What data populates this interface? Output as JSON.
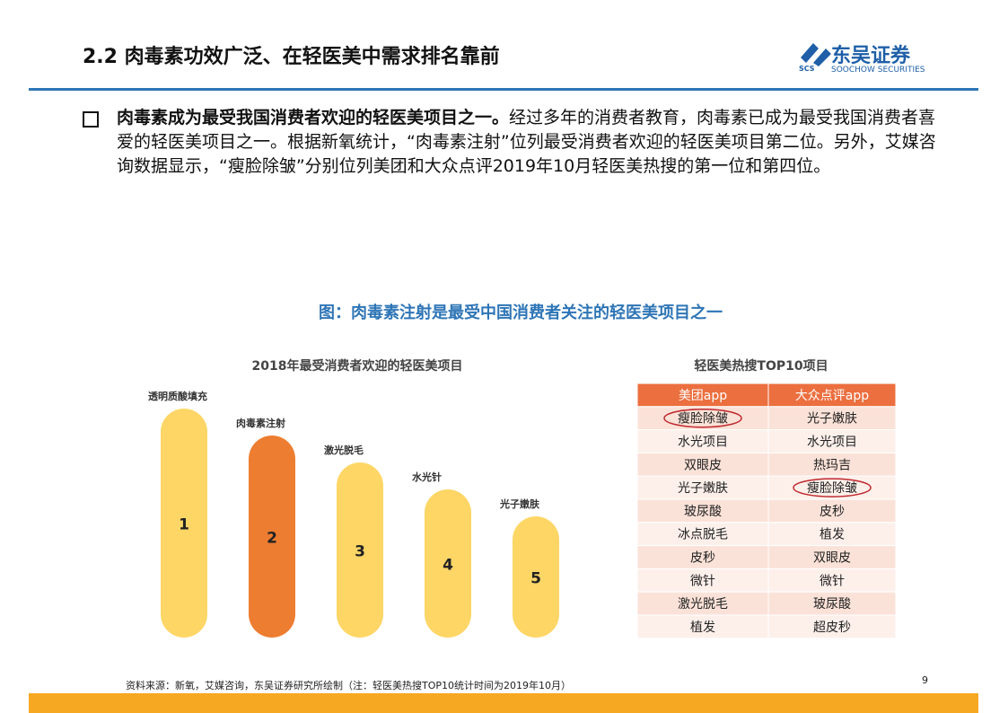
{
  "header": {
    "title": "2.2 肉毒素功效广泛、在轻医美中需求排名靠前",
    "logo_cn": "东吴证券",
    "logo_en": "SOOCHOW SECURITIES",
    "logo_mark": "SCS"
  },
  "bullet": {
    "bold": "肉毒素成为最受我国消费者欢迎的轻医美项目之一。",
    "text": "经过多年的消费者教育，肉毒素已成为最受我国消费者喜爱的轻医美项目之一。根据新氧统计，“肉毒素注射”位列最受消费者欢迎的轻医美项目第二位。另外，艾媒咨询数据显示，“瘦脸除皱”分别位列美团和大众点评2019年10月轻医美热搜的第一位和第四位。"
  },
  "figure_caption": "图：肉毒素注射是最受中国消费者关注的轻医美项目之一",
  "ranking": {
    "title": "2018年最受消费者欢迎的轻医美项目",
    "highlight": 1,
    "color": "#fdd666",
    "highlight_color": "#ed7d31",
    "items": [
      {
        "label": "透明质酸填充",
        "rank": 1
      },
      {
        "label": "肉毒素注射",
        "rank": 2
      },
      {
        "label": "激光脱毛",
        "rank": 3
      },
      {
        "label": "水光针",
        "rank": 4
      },
      {
        "label": "光子嫩肤",
        "rank": 5
      }
    ]
  },
  "table": {
    "title": "轻医美热搜TOP10项目",
    "columns": [
      "美团app",
      "大众点评app"
    ],
    "rows": [
      [
        "瘦脸除皱",
        "光子嫩肤"
      ],
      [
        "水光项目",
        "水光项目"
      ],
      [
        "双眼皮",
        "热玛吉"
      ],
      [
        "光子嫩肤",
        "瘦脸除皱"
      ],
      [
        "玻尿酸",
        "皮秒"
      ],
      [
        "冰点脱毛",
        "植发"
      ],
      [
        "皮秒",
        "双眼皮"
      ],
      [
        "微针",
        "微针"
      ],
      [
        "激光脱毛",
        "玻尿酸"
      ],
      [
        "植发",
        "超皮秒"
      ]
    ],
    "circled": [
      [
        0,
        0
      ],
      [
        3,
        1
      ]
    ]
  },
  "footer": {
    "source": "资料来源：新氧，艾媒咨询，东吴证券研究所绘制（注：轻医美热搜TOP10统计时间为2019年10月）",
    "page": "9"
  }
}
